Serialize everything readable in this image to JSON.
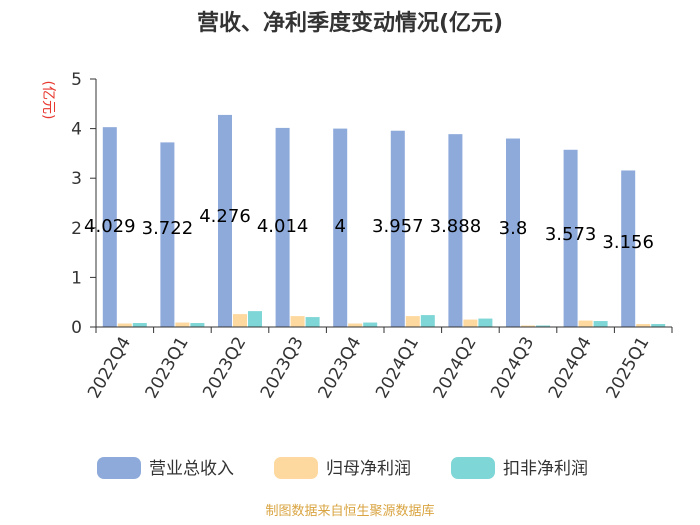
{
  "chart_data": {
    "type": "bar",
    "title": "营收、净利季度变动情况(亿元)",
    "ylabel": "(亿元)",
    "ylim": [
      0,
      5
    ],
    "yticks": [
      "0",
      "1",
      "2",
      "3",
      "4",
      "5"
    ],
    "categories": [
      "2022Q4",
      "2023Q1",
      "2023Q2",
      "2023Q3",
      "2023Q4",
      "2024Q1",
      "2024Q2",
      "2024Q3",
      "2024Q4",
      "2025Q1"
    ],
    "series": [
      {
        "name": "营业总收入",
        "color": "#8eaadb",
        "values": [
          4.029,
          3.722,
          4.276,
          4.014,
          4,
          3.957,
          3.888,
          3.8,
          3.573,
          3.156
        ],
        "labels": [
          "4.029",
          "3.722",
          "4.276",
          "4.014",
          "4",
          "3.957",
          "3.888",
          "3.8",
          "3.573",
          "3.156"
        ]
      },
      {
        "name": "归母净利润",
        "color": "#fdd9a0",
        "values": [
          0.07,
          0.09,
          0.26,
          0.22,
          0.07,
          0.22,
          0.15,
          0.03,
          0.13,
          0.06
        ]
      },
      {
        "name": "扣非净利润",
        "color": "#7fd6d6",
        "values": [
          0.08,
          0.08,
          0.32,
          0.2,
          0.09,
          0.24,
          0.17,
          0.03,
          0.12,
          0.06
        ]
      }
    ],
    "legend_position": "bottom",
    "grid": false,
    "source": "制图数据来自恒生聚源数据库"
  }
}
